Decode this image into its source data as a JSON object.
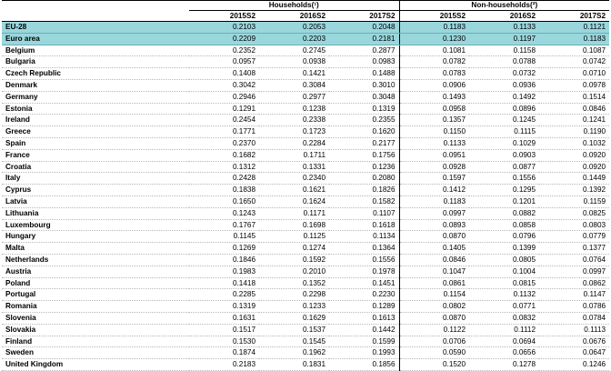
{
  "header": {
    "group1": "Households(¹)",
    "group2": "Non-households(²)",
    "years": [
      "2015S2",
      "2016S2",
      "2017S2"
    ]
  },
  "rows": [
    {
      "name": "EU-28",
      "v": [
        "0.2103",
        "0.2053",
        "0.2048",
        "0.1183",
        "0.1133",
        "0.1121"
      ],
      "agg": true
    },
    {
      "name": "Euro area",
      "v": [
        "0.2209",
        "0.2203",
        "0.2181",
        "0.1230",
        "0.1197",
        "0.1183"
      ],
      "agg": true
    },
    {
      "name": "Belgium",
      "v": [
        "0.2352",
        "0.2745",
        "0.2877",
        "0.1081",
        "0.1158",
        "0.1087"
      ]
    },
    {
      "name": "Bulgaria",
      "v": [
        "0.0957",
        "0.0938",
        "0.0983",
        "0.0782",
        "0.0788",
        "0.0742"
      ]
    },
    {
      "name": "Czech Republic",
      "v": [
        "0.1408",
        "0.1421",
        "0.1488",
        "0.0783",
        "0.0732",
        "0.0710"
      ]
    },
    {
      "name": "Denmark",
      "v": [
        "0.3042",
        "0.3084",
        "0.3010",
        "0.0906",
        "0.0936",
        "0.0978"
      ]
    },
    {
      "name": "Germany",
      "v": [
        "0.2946",
        "0.2977",
        "0.3048",
        "0.1493",
        "0.1492",
        "0.1514"
      ]
    },
    {
      "name": "Estonia",
      "v": [
        "0.1291",
        "0.1238",
        "0.1319",
        "0.0958",
        "0.0896",
        "0.0846"
      ]
    },
    {
      "name": "Ireland",
      "v": [
        "0.2454",
        "0.2338",
        "0.2355",
        "0.1357",
        "0.1245",
        "0.1241"
      ]
    },
    {
      "name": "Greece",
      "v": [
        "0.1771",
        "0.1723",
        "0.1620",
        "0.1150",
        "0.1115",
        "0.1190"
      ]
    },
    {
      "name": "Spain",
      "v": [
        "0.2370",
        "0.2284",
        "0.2177",
        "0.1133",
        "0.1029",
        "0.1032"
      ]
    },
    {
      "name": "France",
      "v": [
        "0.1682",
        "0.1711",
        "0.1756",
        "0.0951",
        "0.0903",
        "0.0920"
      ]
    },
    {
      "name": "Croatia",
      "v": [
        "0.1312",
        "0.1331",
        "0.1236",
        "0.0928",
        "0.0877",
        "0.0920"
      ]
    },
    {
      "name": "Italy",
      "v": [
        "0.2428",
        "0.2340",
        "0.2080",
        "0.1597",
        "0.1556",
        "0.1449"
      ]
    },
    {
      "name": "Cyprus",
      "v": [
        "0.1838",
        "0.1621",
        "0.1826",
        "0.1412",
        "0.1295",
        "0.1392"
      ]
    },
    {
      "name": "Latvia",
      "v": [
        "0.1650",
        "0.1624",
        "0.1582",
        "0.1183",
        "0.1201",
        "0.1159"
      ]
    },
    {
      "name": "Lithuania",
      "v": [
        "0.1243",
        "0.1171",
        "0.1107",
        "0.0997",
        "0.0882",
        "0.0825"
      ]
    },
    {
      "name": "Luxembourg",
      "v": [
        "0.1767",
        "0.1698",
        "0.1618",
        "0.0893",
        "0.0858",
        "0.0803"
      ]
    },
    {
      "name": "Hungary",
      "v": [
        "0.1145",
        "0.1125",
        "0.1134",
        "0.0870",
        "0.0796",
        "0.0779"
      ]
    },
    {
      "name": "Malta",
      "v": [
        "0.1269",
        "0.1274",
        "0.1364",
        "0.1405",
        "0.1399",
        "0.1377"
      ]
    },
    {
      "name": "Netherlands",
      "v": [
        "0.1846",
        "0.1592",
        "0.1556",
        "0.0846",
        "0.0805",
        "0.0764"
      ]
    },
    {
      "name": "Austria",
      "v": [
        "0.1983",
        "0.2010",
        "0.1978",
        "0.1047",
        "0.1004",
        "0.0997"
      ]
    },
    {
      "name": "Poland",
      "v": [
        "0.1418",
        "0.1352",
        "0.1451",
        "0.0861",
        "0.0815",
        "0.0862"
      ]
    },
    {
      "name": "Portugal",
      "v": [
        "0.2285",
        "0.2298",
        "0.2230",
        "0.1154",
        "0.1132",
        "0.1147"
      ]
    },
    {
      "name": "Romania",
      "v": [
        "0.1319",
        "0.1233",
        "0.1289",
        "0.0802",
        "0.0771",
        "0.0786"
      ]
    },
    {
      "name": "Slovenia",
      "v": [
        "0.1631",
        "0.1629",
        "0.1613",
        "0.0870",
        "0.0832",
        "0.0784"
      ]
    },
    {
      "name": "Slovakia",
      "v": [
        "0.1517",
        "0.1537",
        "0.1442",
        "0.1122",
        "0.1112",
        "0.1113"
      ]
    },
    {
      "name": "Finland",
      "v": [
        "0.1530",
        "0.1545",
        "0.1599",
        "0.0706",
        "0.0694",
        "0.0676"
      ]
    },
    {
      "name": "Sweden",
      "v": [
        "0.1874",
        "0.1962",
        "0.1993",
        "0.0590",
        "0.0656",
        "0.0647"
      ]
    },
    {
      "name": "United Kingdom",
      "v": [
        "0.2183",
        "0.1831",
        "0.1856",
        "0.1520",
        "0.1278",
        "0.1246"
      ]
    }
  ]
}
